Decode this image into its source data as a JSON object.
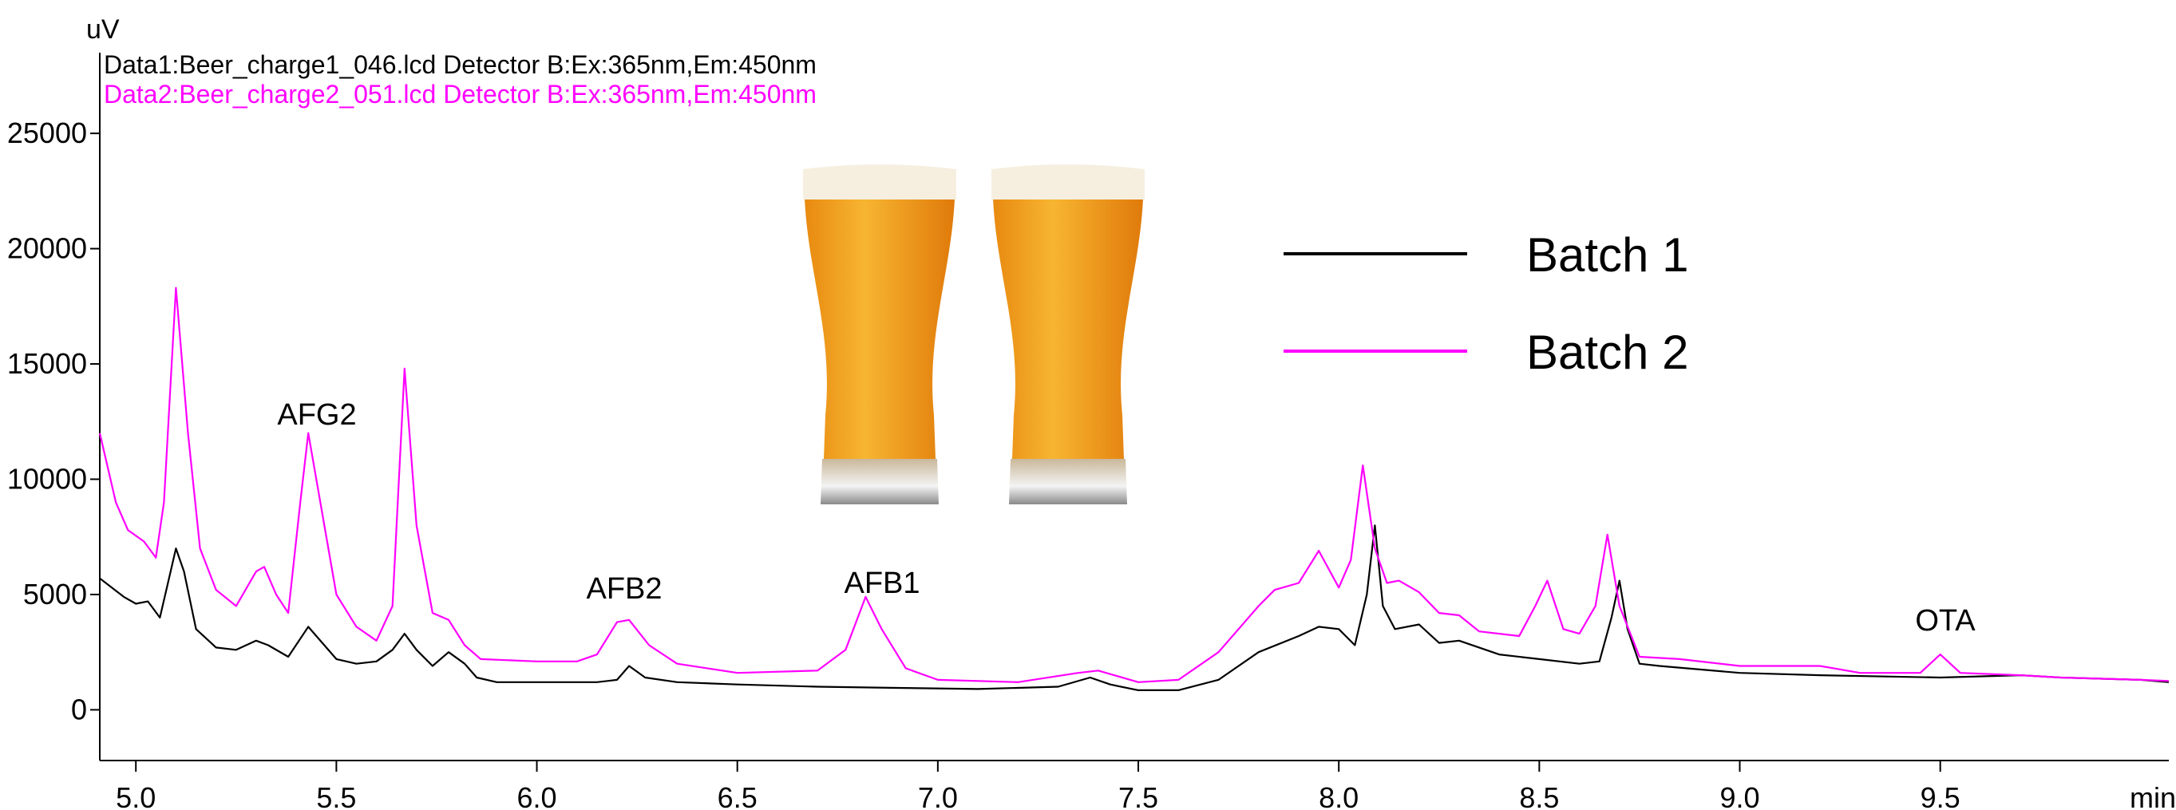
{
  "chart_data": {
    "type": "line",
    "subtitles": [
      "Data1:Beer_charge1_046.lcd Detector B:Ex:365nm,Em:450nm",
      "Data2:Beer_charge2_051.lcd Detector B:Ex:365nm,Em:450nm"
    ],
    "subtitle_colors": [
      "#000000",
      "#ff00ff"
    ],
    "y_label": "uV",
    "x_label": "min",
    "annotations": [
      "AFG2",
      "AFB2",
      "AFB1",
      "OTA"
    ],
    "xlim": [
      4.91,
      10.07
    ],
    "ylim": [
      -2200,
      28500
    ],
    "xticks": [
      {
        "value": 5,
        "label": "5.0"
      },
      5.5,
      {
        "value": 6,
        "label": "6.0"
      },
      6.5,
      {
        "value": 7,
        "label": "7.0"
      },
      7.5,
      {
        "value": 8,
        "label": "8.0"
      },
      8.5,
      {
        "value": 9,
        "label": "9.0"
      },
      9.5
    ],
    "yticks": [
      0,
      5000,
      10000,
      15000,
      20000,
      25000
    ],
    "grid": false,
    "series": [
      {
        "name": "Batch 1",
        "color": "#000000",
        "x": [
          4.91,
          4.97,
          5.0,
          5.03,
          5.06,
          5.08,
          5.1,
          5.12,
          5.15,
          5.2,
          5.25,
          5.3,
          5.33,
          5.38,
          5.43,
          5.47,
          5.5,
          5.55,
          5.6,
          5.64,
          5.67,
          5.7,
          5.74,
          5.78,
          5.82,
          5.85,
          5.9,
          6.0,
          6.1,
          6.15,
          6.2,
          6.23,
          6.27,
          6.35,
          6.5,
          6.7,
          6.9,
          7.1,
          7.3,
          7.38,
          7.43,
          7.5,
          7.6,
          7.7,
          7.8,
          7.9,
          7.95,
          8.0,
          8.04,
          8.07,
          8.09,
          8.11,
          8.14,
          8.2,
          8.25,
          8.3,
          8.4,
          8.5,
          8.6,
          8.65,
          8.68,
          8.7,
          8.72,
          8.75,
          8.8,
          9.0,
          9.2,
          9.5,
          9.7,
          9.8,
          10.0,
          10.07
        ],
        "values": [
          5700,
          4900,
          4600,
          4700,
          4000,
          5500,
          7000,
          6000,
          3500,
          2700,
          2600,
          3000,
          2800,
          2300,
          3600,
          2800,
          2200,
          2000,
          2100,
          2600,
          3300,
          2600,
          1900,
          2500,
          2000,
          1400,
          1200,
          1200,
          1200,
          1200,
          1300,
          1900,
          1400,
          1200,
          1100,
          1000,
          950,
          900,
          1000,
          1400,
          1100,
          850,
          850,
          1300,
          2500,
          3200,
          3600,
          3500,
          2800,
          5000,
          8000,
          4500,
          3500,
          3700,
          2900,
          3000,
          2400,
          2200,
          2000,
          2100,
          4000,
          5600,
          3500,
          2000,
          1900,
          1600,
          1500,
          1400,
          1500,
          1400,
          1300,
          1200
        ]
      },
      {
        "name": "Batch 2",
        "color": "#ff00ff",
        "x": [
          4.91,
          4.95,
          4.98,
          5.02,
          5.05,
          5.07,
          5.1,
          5.13,
          5.16,
          5.2,
          5.25,
          5.3,
          5.32,
          5.35,
          5.38,
          5.41,
          5.43,
          5.46,
          5.5,
          5.55,
          5.6,
          5.64,
          5.67,
          5.7,
          5.74,
          5.78,
          5.82,
          5.86,
          6.0,
          6.1,
          6.15,
          6.2,
          6.23,
          6.28,
          6.35,
          6.5,
          6.7,
          6.77,
          6.82,
          6.86,
          6.92,
          7.0,
          7.2,
          7.35,
          7.4,
          7.5,
          7.6,
          7.7,
          7.8,
          7.84,
          7.9,
          7.95,
          8.0,
          8.03,
          8.06,
          8.09,
          8.12,
          8.15,
          8.2,
          8.25,
          8.3,
          8.35,
          8.45,
          8.49,
          8.52,
          8.56,
          8.6,
          8.64,
          8.67,
          8.7,
          8.75,
          8.85,
          9.0,
          9.2,
          9.3,
          9.45,
          9.5,
          9.55,
          9.7,
          9.8,
          10.0,
          10.07
        ],
        "values": [
          12000,
          9000,
          7800,
          7300,
          6600,
          9000,
          18300,
          12000,
          7000,
          5200,
          4500,
          6000,
          6200,
          5000,
          4200,
          9000,
          12000,
          9000,
          5000,
          3600,
          3000,
          4500,
          14800,
          8000,
          4200,
          3900,
          2800,
          2200,
          2100,
          2100,
          2400,
          3800,
          3900,
          2800,
          2000,
          1600,
          1700,
          2600,
          4900,
          3500,
          1800,
          1300,
          1200,
          1600,
          1700,
          1200,
          1300,
          2500,
          4500,
          5200,
          5500,
          6900,
          5300,
          6500,
          10600,
          7000,
          5500,
          5600,
          5100,
          4200,
          4100,
          3400,
          3200,
          4500,
          5600,
          3500,
          3300,
          4500,
          7600,
          4500,
          2300,
          2200,
          1900,
          1900,
          1600,
          1600,
          2400,
          1600,
          1500,
          1400,
          1300,
          1250
        ]
      }
    ]
  }
}
